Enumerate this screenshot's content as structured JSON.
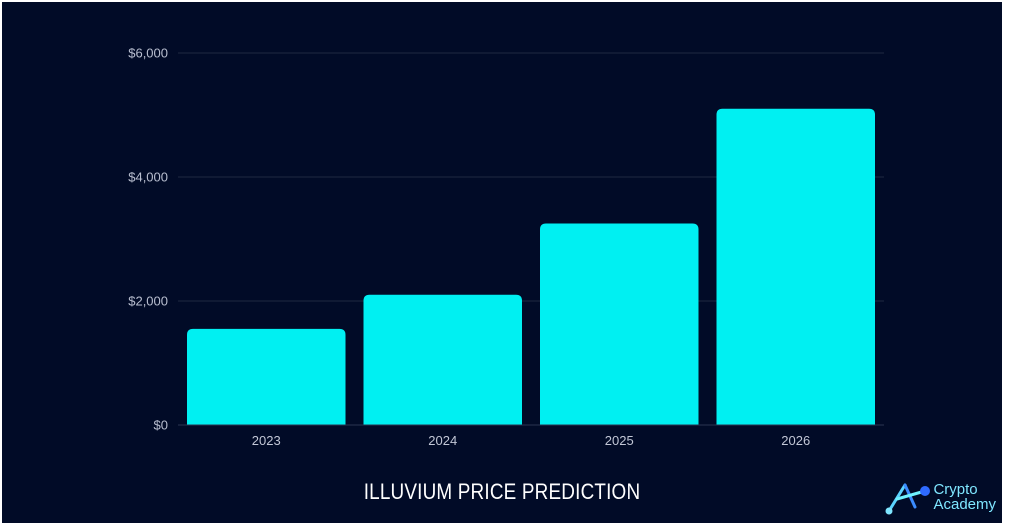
{
  "chart_data": {
    "type": "bar",
    "title": "ILLUVIUM PRICE PREDICTION",
    "categories": [
      "2023",
      "2024",
      "2025",
      "2026"
    ],
    "values": [
      1550,
      2100,
      3250,
      5100
    ],
    "ylim": [
      0,
      6000
    ],
    "yticks": [
      0,
      2000,
      4000,
      6000
    ],
    "ytick_labels": [
      "$0",
      "$2,000",
      "$4,000",
      "$6,000"
    ],
    "xlabel": "",
    "ylabel": "",
    "grid": true,
    "bar_color": "#00f0f2",
    "background_color": "#010b27"
  },
  "brand": {
    "line1": "Crypto",
    "line2": "Academy",
    "icon": "crypto-academy-logo-icon"
  }
}
